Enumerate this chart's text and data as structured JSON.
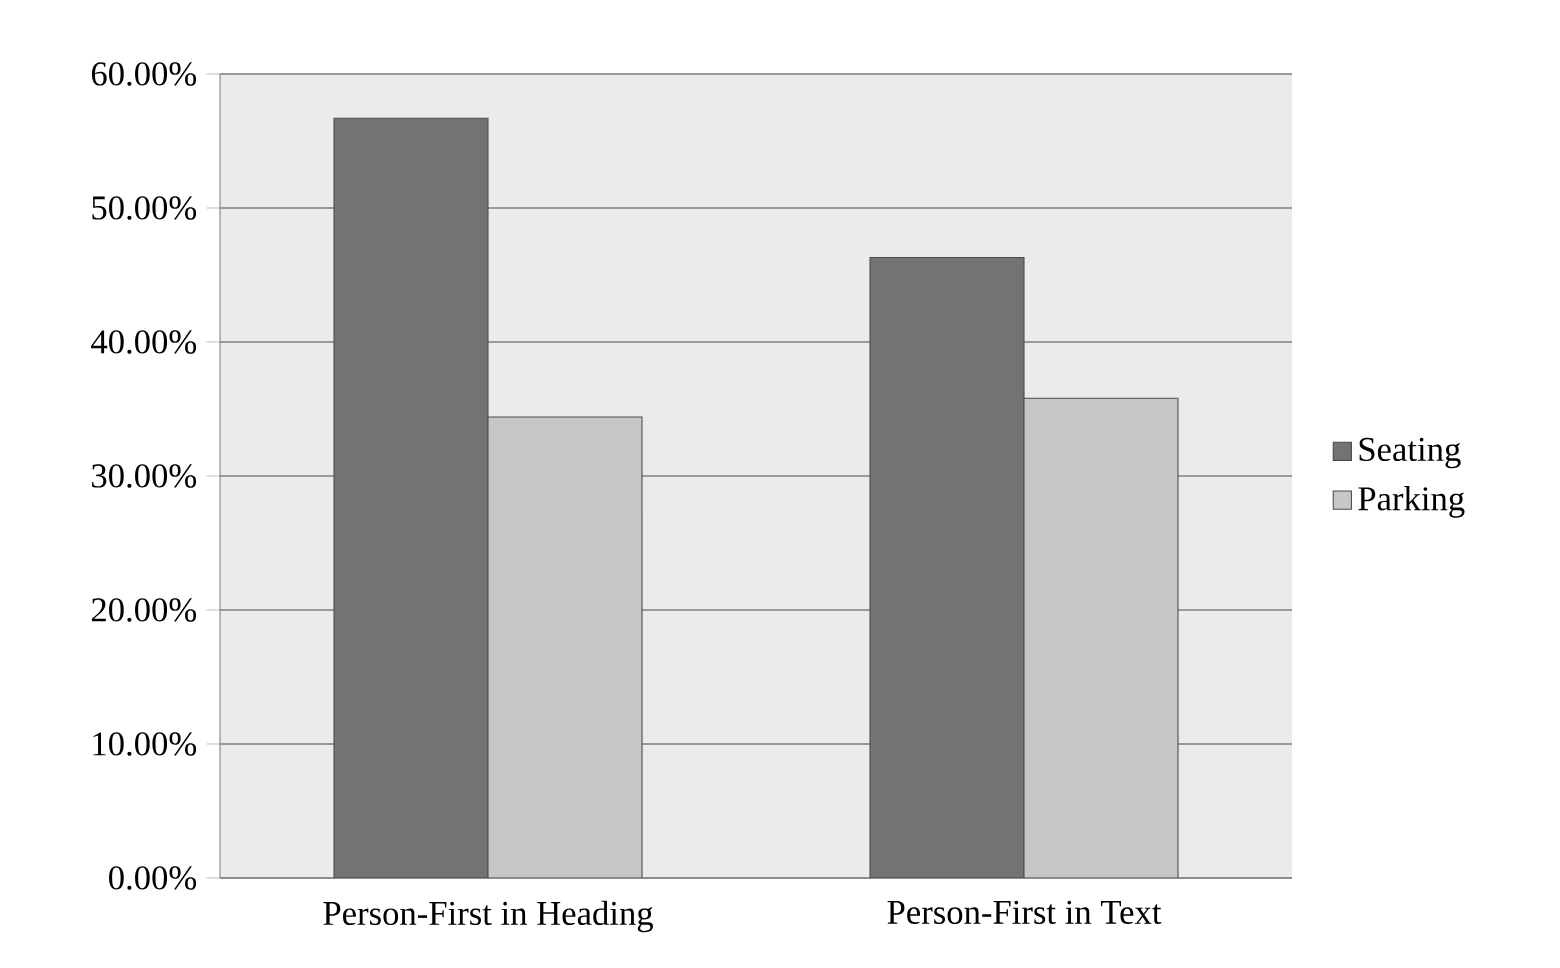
{
  "chart_data": {
    "type": "bar",
    "categories": [
      "Person-First in Heading",
      "Person-First in Text"
    ],
    "series": [
      {
        "name": "Seating",
        "color": "#737373",
        "values": [
          56.7,
          46.3
        ]
      },
      {
        "name": "Parking",
        "color": "#c6c6c6",
        "values": [
          34.4,
          35.8
        ]
      }
    ],
    "ylim": [
      0,
      60
    ],
    "yticks": [
      {
        "value": 0,
        "label": "0.00%"
      },
      {
        "value": 10,
        "label": "10.00%"
      },
      {
        "value": 20,
        "label": "20.00%"
      },
      {
        "value": 30,
        "label": "30.00%"
      },
      {
        "value": 40,
        "label": "40.00%"
      },
      {
        "value": 50,
        "label": "50.00%"
      },
      {
        "value": 60,
        "label": "60.00%"
      }
    ],
    "grid": "y",
    "legend": "right"
  }
}
